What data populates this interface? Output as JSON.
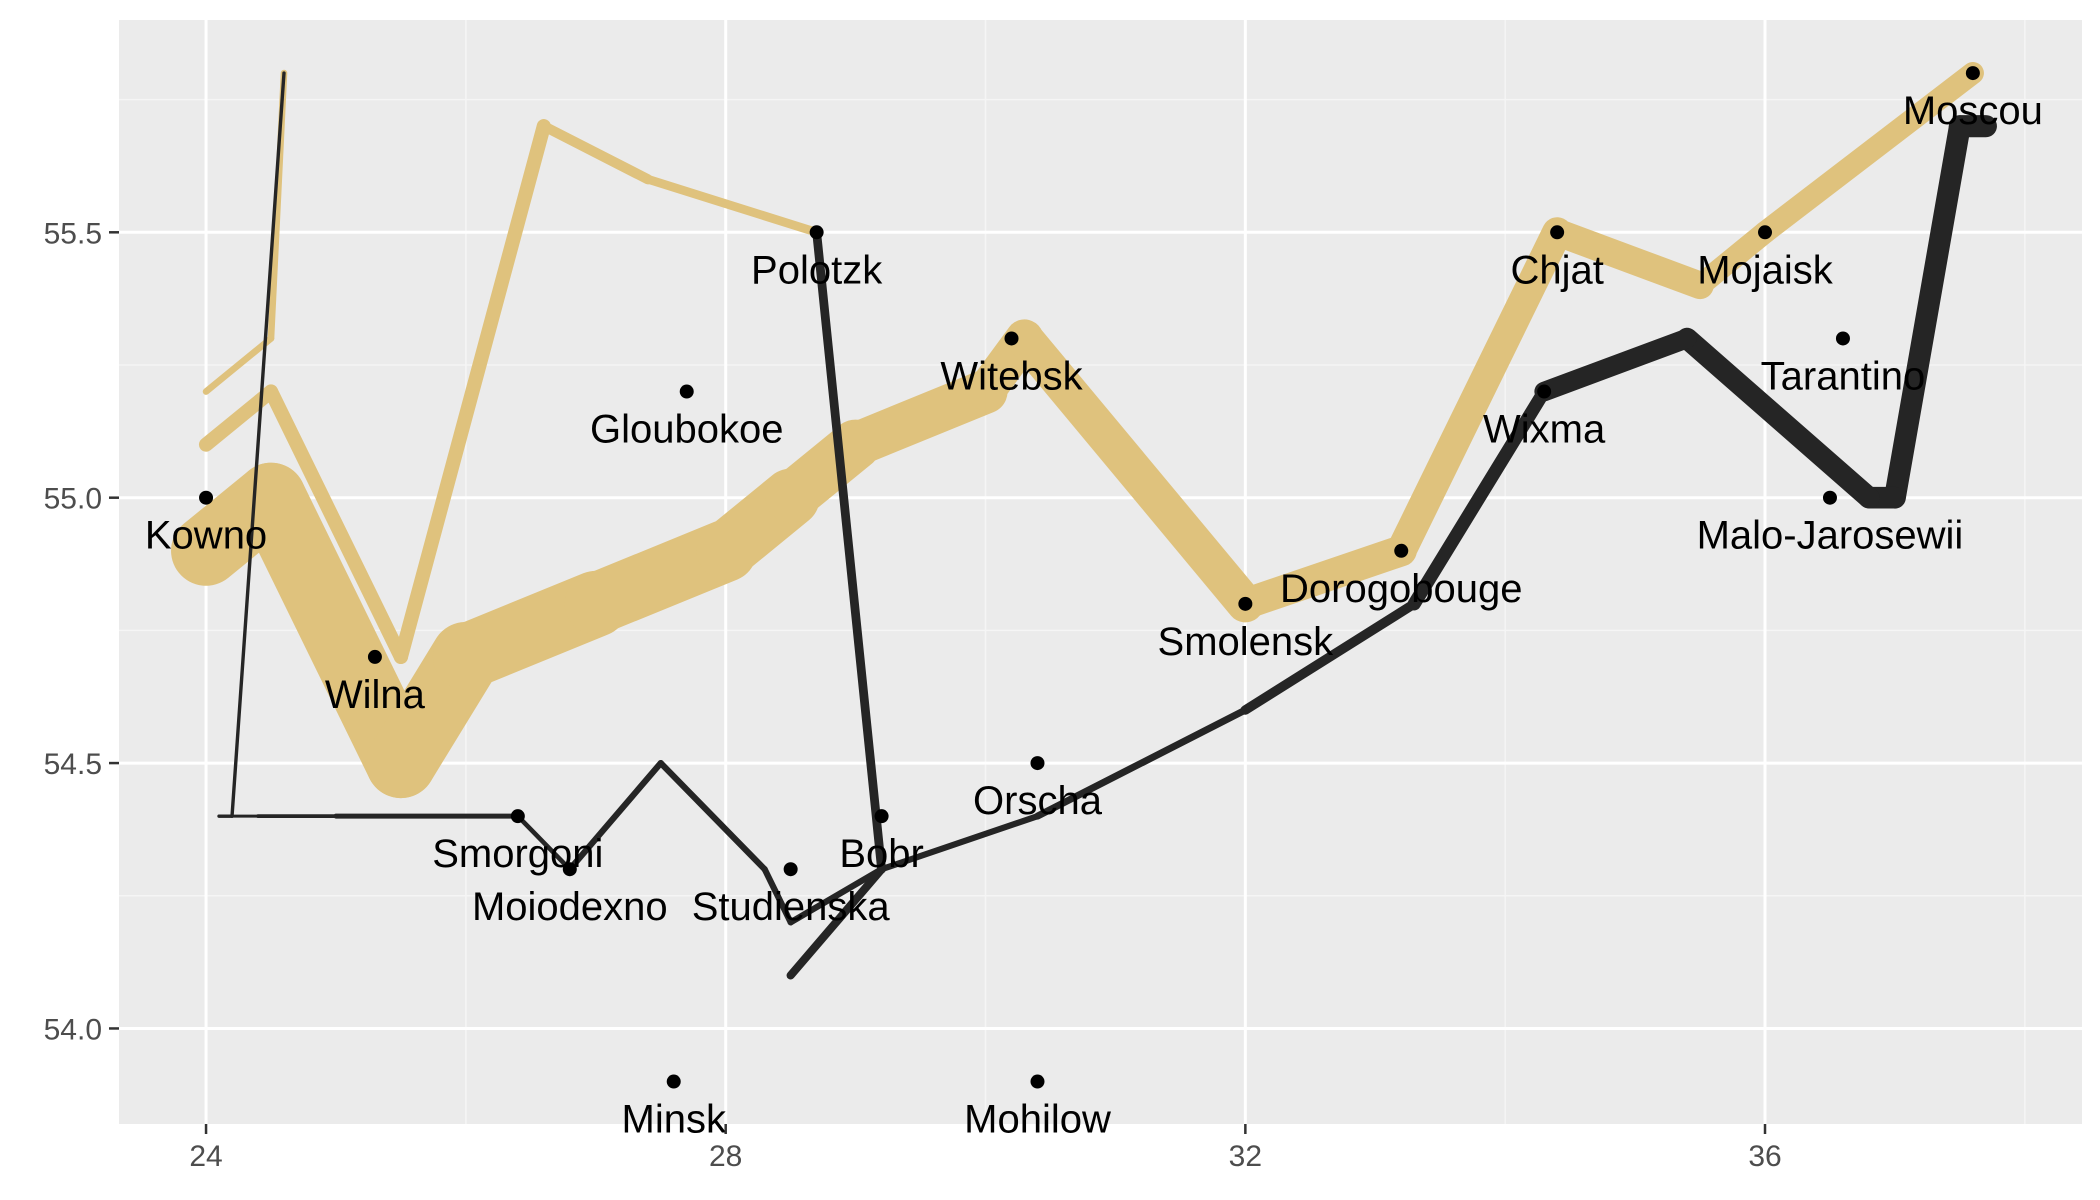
{
  "chart_data": {
    "type": "line",
    "title": "",
    "xlabel": "",
    "ylabel": "",
    "xlim": [
      23.33,
      38.44
    ],
    "ylim": [
      53.82,
      55.9
    ],
    "grid": true,
    "legend": "none",
    "colors": {
      "panel_background": "#EBEBEB",
      "grid_major": "#FFFFFF",
      "grid_minor": "#F5F5F5",
      "advance": "#DFC27D",
      "retreat": "#252525",
      "city_point": "#000000"
    },
    "x_ticks": [
      {
        "value": 24,
        "label": "24"
      },
      {
        "value": 28,
        "label": "28"
      },
      {
        "value": 32,
        "label": "32"
      },
      {
        "value": 36,
        "label": "36"
      }
    ],
    "y_ticks": [
      {
        "value": 54.0,
        "label": "54.0"
      },
      {
        "value": 54.5,
        "label": "54.5"
      },
      {
        "value": 55.0,
        "label": "55.0"
      },
      {
        "value": 55.5,
        "label": "55.5"
      }
    ],
    "series": [
      {
        "direction": "A",
        "group": 1,
        "color": "#DFC27D",
        "points": [
          {
            "lon": 24.0,
            "lat": 54.9,
            "survivors": 340000
          },
          {
            "lon": 24.5,
            "lat": 55.0,
            "survivors": 340000
          },
          {
            "lon": 25.5,
            "lat": 54.5,
            "survivors": 340000
          },
          {
            "lon": 26.0,
            "lat": 54.7,
            "survivors": 320000
          },
          {
            "lon": 27.0,
            "lat": 54.8,
            "survivors": 300000
          },
          {
            "lon": 28.0,
            "lat": 54.9,
            "survivors": 280000
          },
          {
            "lon": 28.5,
            "lat": 55.0,
            "survivors": 240000
          },
          {
            "lon": 29.0,
            "lat": 55.1,
            "survivors": 210000
          },
          {
            "lon": 30.0,
            "lat": 55.2,
            "survivors": 180000
          },
          {
            "lon": 30.3,
            "lat": 55.3,
            "survivors": 175000
          },
          {
            "lon": 32.0,
            "lat": 54.8,
            "survivors": 145000
          },
          {
            "lon": 33.2,
            "lat": 54.9,
            "survivors": 140000
          },
          {
            "lon": 34.4,
            "lat": 55.5,
            "survivors": 127100
          },
          {
            "lon": 35.5,
            "lat": 55.4,
            "survivors": 100000
          },
          {
            "lon": 36.0,
            "lat": 55.5,
            "survivors": 100000
          },
          {
            "lon": 37.6,
            "lat": 55.8,
            "survivors": 100000
          }
        ]
      },
      {
        "direction": "R",
        "group": 1,
        "color": "#252525",
        "points": [
          {
            "lon": 37.7,
            "lat": 55.7,
            "survivors": 100000
          },
          {
            "lon": 37.5,
            "lat": 55.7,
            "survivors": 98000
          },
          {
            "lon": 37.0,
            "lat": 55.0,
            "survivors": 97000
          },
          {
            "lon": 36.8,
            "lat": 55.0,
            "survivors": 96000
          },
          {
            "lon": 35.4,
            "lat": 55.3,
            "survivors": 87000
          },
          {
            "lon": 34.3,
            "lat": 55.2,
            "survivors": 55000
          },
          {
            "lon": 33.3,
            "lat": 54.8,
            "survivors": 37000
          },
          {
            "lon": 32.0,
            "lat": 54.6,
            "survivors": 24000
          },
          {
            "lon": 30.4,
            "lat": 54.4,
            "survivors": 20000
          },
          {
            "lon": 29.2,
            "lat": 54.3,
            "survivors": 20000
          },
          {
            "lon": 28.5,
            "lat": 54.2,
            "survivors": 20000
          },
          {
            "lon": 28.3,
            "lat": 54.3,
            "survivors": 20000
          },
          {
            "lon": 27.5,
            "lat": 54.5,
            "survivors": 20000
          },
          {
            "lon": 26.8,
            "lat": 54.3,
            "survivors": 12000
          },
          {
            "lon": 26.4,
            "lat": 54.4,
            "survivors": 14000
          },
          {
            "lon": 25.0,
            "lat": 54.4,
            "survivors": 8000
          },
          {
            "lon": 24.4,
            "lat": 54.4,
            "survivors": 4000
          },
          {
            "lon": 24.2,
            "lat": 54.4,
            "survivors": 4000
          },
          {
            "lon": 24.1,
            "lat": 54.4,
            "survivors": 4000
          }
        ]
      },
      {
        "direction": "A",
        "group": 2,
        "color": "#DFC27D",
        "points": [
          {
            "lon": 24.0,
            "lat": 55.1,
            "survivors": 60000
          },
          {
            "lon": 24.5,
            "lat": 55.2,
            "survivors": 60000
          },
          {
            "lon": 25.5,
            "lat": 54.7,
            "survivors": 60000
          },
          {
            "lon": 26.6,
            "lat": 55.7,
            "survivors": 40000
          },
          {
            "lon": 27.4,
            "lat": 55.6,
            "survivors": 33000
          },
          {
            "lon": 28.7,
            "lat": 55.5,
            "survivors": 33000
          }
        ]
      },
      {
        "direction": "R",
        "group": 2,
        "color": "#252525",
        "points": [
          {
            "lon": 28.7,
            "lat": 55.5,
            "survivors": 33000
          },
          {
            "lon": 29.2,
            "lat": 54.3,
            "survivors": 30000
          },
          {
            "lon": 28.5,
            "lat": 54.1,
            "survivors": 30000
          }
        ]
      },
      {
        "direction": "A",
        "group": 3,
        "color": "#DFC27D",
        "points": [
          {
            "lon": 24.0,
            "lat": 55.2,
            "survivors": 22000
          },
          {
            "lon": 24.5,
            "lat": 55.3,
            "survivors": 22000
          },
          {
            "lon": 24.6,
            "lat": 55.8,
            "survivors": 6000
          }
        ]
      },
      {
        "direction": "R",
        "group": 3,
        "color": "#252525",
        "points": [
          {
            "lon": 24.6,
            "lat": 55.8,
            "survivors": 6000
          },
          {
            "lon": 24.2,
            "lat": 54.4,
            "survivors": 6000
          },
          {
            "lon": 24.1,
            "lat": 54.4,
            "survivors": 6000
          }
        ]
      }
    ],
    "cities": [
      {
        "lon": 24.0,
        "lat": 55.0,
        "name": "Kowno"
      },
      {
        "lon": 25.3,
        "lat": 54.7,
        "name": "Wilna"
      },
      {
        "lon": 26.4,
        "lat": 54.4,
        "name": "Smorgoni"
      },
      {
        "lon": 26.8,
        "lat": 54.3,
        "name": "Moiodexno"
      },
      {
        "lon": 27.7,
        "lat": 55.2,
        "name": "Gloubokoe"
      },
      {
        "lon": 27.6,
        "lat": 53.9,
        "name": "Minsk"
      },
      {
        "lon": 28.5,
        "lat": 54.3,
        "name": "Studienska"
      },
      {
        "lon": 28.7,
        "lat": 55.5,
        "name": "Polotzk"
      },
      {
        "lon": 29.2,
        "lat": 54.4,
        "name": "Bobr"
      },
      {
        "lon": 30.2,
        "lat": 55.3,
        "name": "Witebsk"
      },
      {
        "lon": 30.4,
        "lat": 54.5,
        "name": "Orscha"
      },
      {
        "lon": 30.4,
        "lat": 53.9,
        "name": "Mohilow"
      },
      {
        "lon": 32.0,
        "lat": 54.8,
        "name": "Smolensk"
      },
      {
        "lon": 33.2,
        "lat": 54.9,
        "name": "Dorogobouge"
      },
      {
        "lon": 34.3,
        "lat": 55.2,
        "name": "Wixma"
      },
      {
        "lon": 34.4,
        "lat": 55.5,
        "name": "Chjat"
      },
      {
        "lon": 36.0,
        "lat": 55.5,
        "name": "Mojaisk"
      },
      {
        "lon": 37.6,
        "lat": 55.8,
        "name": "Moscou"
      },
      {
        "lon": 36.6,
        "lat": 55.3,
        "name": "Tarantino"
      },
      {
        "lon": 36.5,
        "lat": 55.0,
        "name": "Malo-Jarosewii"
      }
    ]
  }
}
